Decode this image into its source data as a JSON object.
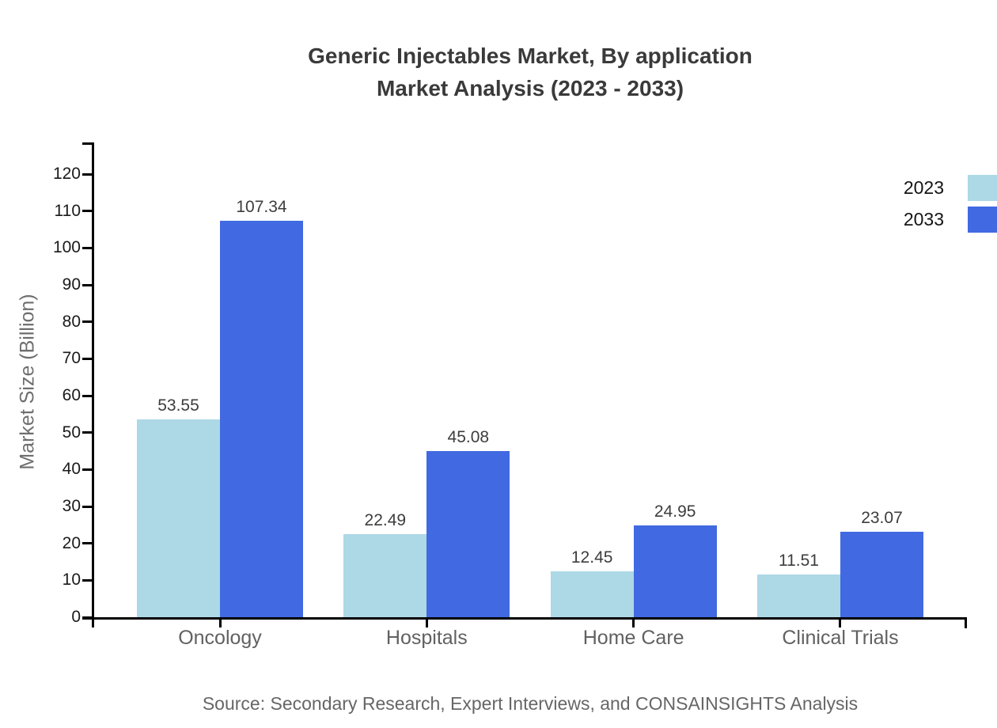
{
  "chart_data": {
    "type": "bar",
    "title_line1": "Generic Injectables Market, By application",
    "title_line2": "Market Analysis (2023 - 2033)",
    "categories": [
      "Oncology",
      "Hospitals",
      "Home Care",
      "Clinical Trials"
    ],
    "series": [
      {
        "name": "2023",
        "color": "#ADD8E6",
        "values": [
          53.55,
          22.49,
          12.45,
          11.51
        ]
      },
      {
        "name": "2033",
        "color": "#4169E1",
        "values": [
          107.34,
          45.08,
          24.95,
          23.07
        ]
      }
    ],
    "value_label_decimals": 2,
    "ylabel": "Market Size (Billion)",
    "xlabel": "",
    "yticks": [
      0,
      10,
      20,
      30,
      40,
      50,
      60,
      70,
      80,
      90,
      100,
      110,
      120
    ],
    "ylim": [
      0,
      128.6
    ],
    "grid": false,
    "legend_position": "top-right",
    "source": "Source: Secondary Research, Expert Interviews, and CONSAINSIGHTS Analysis"
  }
}
